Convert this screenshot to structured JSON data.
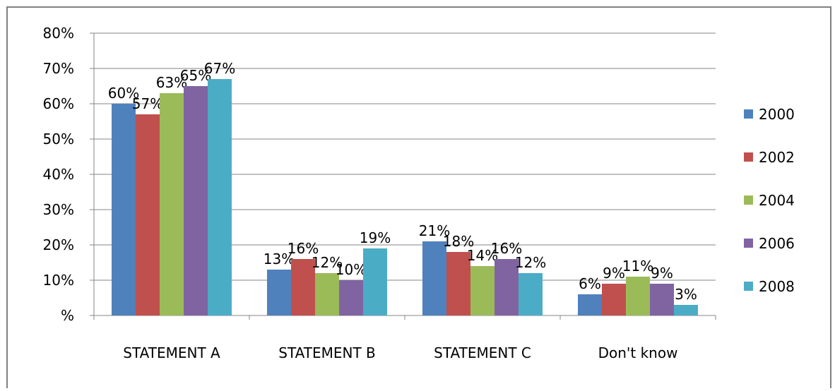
{
  "chart_data": {
    "type": "bar",
    "categories": [
      "STATEMENT A",
      "STATEMENT B",
      "STATEMENT C",
      "Don't know"
    ],
    "series": [
      {
        "name": "2000",
        "color": "#4f81bd",
        "values": [
          60,
          13,
          21,
          6
        ],
        "value_labels": [
          "60%",
          "13%",
          "21%",
          "6%"
        ]
      },
      {
        "name": "2002",
        "color": "#c0504d",
        "values": [
          57,
          16,
          18,
          9
        ],
        "value_labels": [
          "57%",
          "16%",
          "18%",
          "9%"
        ]
      },
      {
        "name": "2004",
        "color": "#9bbb59",
        "values": [
          63,
          12,
          14,
          11
        ],
        "value_labels": [
          "63%",
          "12%",
          "14%",
          "11%"
        ]
      },
      {
        "name": "2006",
        "color": "#8064a2",
        "values": [
          65,
          10,
          16,
          9
        ],
        "value_labels": [
          "65%",
          "10%",
          "16%",
          "9%"
        ]
      },
      {
        "name": "2008",
        "color": "#4bacc6",
        "values": [
          67,
          19,
          12,
          3
        ],
        "value_labels": [
          "67%",
          "19%",
          "12%",
          "3%"
        ]
      }
    ],
    "ylim": [
      0,
      80
    ],
    "yticks": [
      {
        "value": 0,
        "label": "%"
      },
      {
        "value": 10,
        "label": "10%"
      },
      {
        "value": 20,
        "label": "20%"
      },
      {
        "value": 30,
        "label": "30%"
      },
      {
        "value": 40,
        "label": "40%"
      },
      {
        "value": 50,
        "label": "50%"
      },
      {
        "value": 60,
        "label": "60%"
      },
      {
        "value": 70,
        "label": "70%"
      },
      {
        "value": 80,
        "label": "80%"
      }
    ],
    "grid": true,
    "legend": "right"
  }
}
